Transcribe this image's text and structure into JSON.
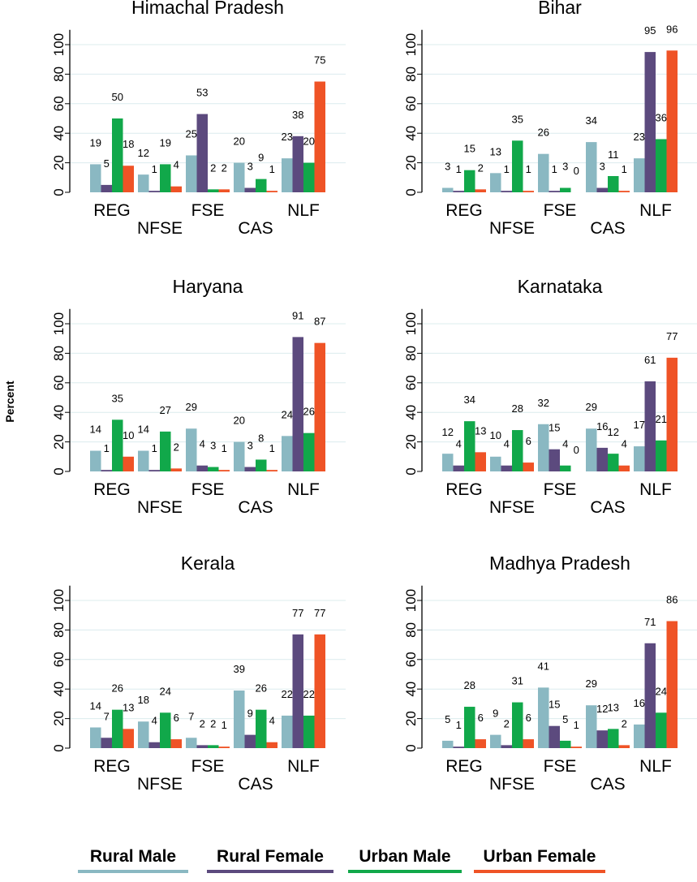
{
  "figure": {
    "ylabel": "Percent",
    "categories": [
      "REG",
      "NFSE",
      "FSE",
      "CAS",
      "NLF"
    ],
    "series_names": [
      "Rural Male",
      "Rural Female",
      "Urban Male",
      "Urban Female"
    ],
    "colors": {
      "rural_male": "#8ab8c2",
      "rural_female": "#5c4a7e",
      "urban_male": "#11a84a",
      "urban_female": "#ef5326",
      "grid": "#dcecee"
    }
  },
  "legend": {
    "items": [
      {
        "label": "Rural Male",
        "color": "#8ab8c2"
      },
      {
        "label": "Rural Female",
        "color": "#5c4a7e"
      },
      {
        "label": "Urban Male",
        "color": "#11a84a"
      },
      {
        "label": "Urban Female",
        "color": "#ef5326"
      }
    ]
  },
  "chart_data": [
    {
      "type": "bar",
      "title": "Himachal Pradesh",
      "categories": [
        "REG",
        "NFSE",
        "FSE",
        "CAS",
        "NLF"
      ],
      "ylabel": "",
      "ylim": [
        0,
        110
      ],
      "yticks": [
        0,
        20,
        40,
        60,
        80,
        100
      ],
      "series": [
        {
          "name": "Rural Male",
          "values": [
            19,
            12,
            25,
            20,
            23
          ]
        },
        {
          "name": "Rural Female",
          "values": [
            5,
            1,
            53,
            3,
            38
          ]
        },
        {
          "name": "Urban Male",
          "values": [
            50,
            19,
            2,
            9,
            20
          ]
        },
        {
          "name": "Urban Female",
          "values": [
            18,
            4,
            2,
            1,
            75
          ]
        }
      ]
    },
    {
      "type": "bar",
      "title": "Bihar",
      "categories": [
        "REG",
        "NFSE",
        "FSE",
        "CAS",
        "NLF"
      ],
      "ylabel": "",
      "ylim": [
        0,
        110
      ],
      "yticks": [
        0,
        20,
        40,
        60,
        80,
        100
      ],
      "series": [
        {
          "name": "Rural Male",
          "values": [
            3,
            13,
            26,
            34,
            23
          ]
        },
        {
          "name": "Rural Female",
          "values": [
            1,
            1,
            1,
            3,
            95
          ]
        },
        {
          "name": "Urban Male",
          "values": [
            15,
            35,
            3,
            11,
            36
          ]
        },
        {
          "name": "Urban Female",
          "values": [
            2,
            1,
            0,
            1,
            96
          ]
        }
      ]
    },
    {
      "type": "bar",
      "title": "Haryana",
      "categories": [
        "REG",
        "NFSE",
        "FSE",
        "CAS",
        "NLF"
      ],
      "ylabel": "",
      "ylim": [
        0,
        110
      ],
      "yticks": [
        0,
        20,
        40,
        60,
        80,
        100
      ],
      "series": [
        {
          "name": "Rural Male",
          "values": [
            14,
            14,
            29,
            20,
            24
          ]
        },
        {
          "name": "Rural Female",
          "values": [
            1,
            1,
            4,
            3,
            91
          ]
        },
        {
          "name": "Urban Male",
          "values": [
            35,
            27,
            3,
            8,
            26
          ]
        },
        {
          "name": "Urban Female",
          "values": [
            10,
            2,
            1,
            1,
            87
          ]
        }
      ]
    },
    {
      "type": "bar",
      "title": "Karnataka",
      "categories": [
        "REG",
        "NFSE",
        "FSE",
        "CAS",
        "NLF"
      ],
      "ylabel": "",
      "ylim": [
        0,
        110
      ],
      "yticks": [
        0,
        20,
        40,
        60,
        80,
        100
      ],
      "series": [
        {
          "name": "Rural Male",
          "values": [
            12,
            10,
            32,
            29,
            17
          ]
        },
        {
          "name": "Rural Female",
          "values": [
            4,
            4,
            15,
            16,
            61
          ]
        },
        {
          "name": "Urban Male",
          "values": [
            34,
            28,
            4,
            12,
            21
          ]
        },
        {
          "name": "Urban Female",
          "values": [
            13,
            6,
            0,
            4,
            77
          ]
        }
      ]
    },
    {
      "type": "bar",
      "title": "Kerala",
      "categories": [
        "REG",
        "NFSE",
        "FSE",
        "CAS",
        "NLF"
      ],
      "ylabel": "",
      "ylim": [
        0,
        110
      ],
      "yticks": [
        0,
        20,
        40,
        60,
        80,
        100
      ],
      "series": [
        {
          "name": "Rural Male",
          "values": [
            14,
            18,
            7,
            39,
            22
          ]
        },
        {
          "name": "Rural Female",
          "values": [
            7,
            4,
            2,
            9,
            77
          ]
        },
        {
          "name": "Urban Male",
          "values": [
            26,
            24,
            2,
            26,
            22
          ]
        },
        {
          "name": "Urban Female",
          "values": [
            13,
            6,
            1,
            4,
            77
          ]
        }
      ]
    },
    {
      "type": "bar",
      "title": "Madhya Pradesh",
      "categories": [
        "REG",
        "NFSE",
        "FSE",
        "CAS",
        "NLF"
      ],
      "ylabel": "",
      "ylim": [
        0,
        110
      ],
      "yticks": [
        0,
        20,
        40,
        60,
        80,
        100
      ],
      "series": [
        {
          "name": "Rural Male",
          "values": [
            5,
            9,
            41,
            29,
            16
          ]
        },
        {
          "name": "Rural Female",
          "values": [
            1,
            2,
            15,
            12,
            71
          ]
        },
        {
          "name": "Urban Male",
          "values": [
            28,
            31,
            5,
            13,
            24
          ]
        },
        {
          "name": "Urban Female",
          "values": [
            6,
            6,
            1,
            2,
            86
          ]
        }
      ]
    }
  ]
}
